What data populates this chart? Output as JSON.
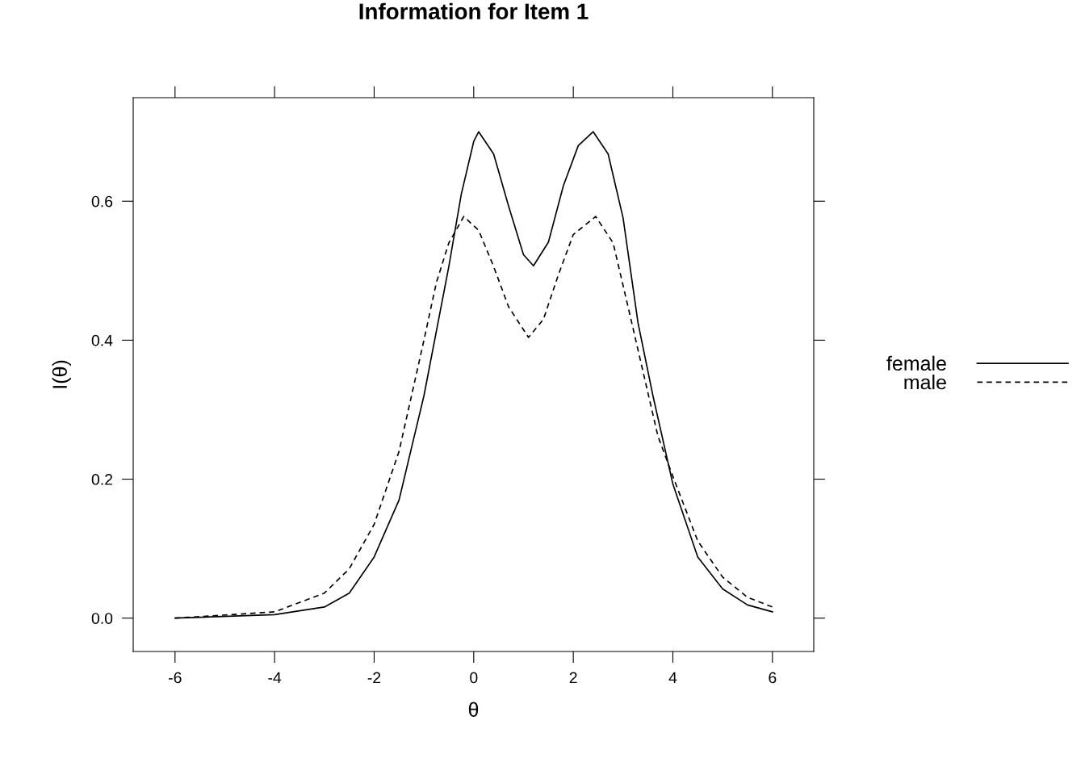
{
  "chart_data": {
    "type": "line",
    "title": "Information for Item 1",
    "xlabel": "θ",
    "ylabel": "I(θ)",
    "xlim": [
      -6.84,
      6.83
    ],
    "ylim": [
      -0.048,
      0.749
    ],
    "xticks": [
      -6,
      -4,
      -2,
      0,
      2,
      4,
      6
    ],
    "yticks": [
      {
        "value": 0,
        "label": "0.0"
      },
      {
        "value": 0.2,
        "label": "0.2"
      },
      {
        "value": 0.4,
        "label": "0.4"
      },
      {
        "value": 0.6,
        "label": "0.6"
      }
    ],
    "grid": false,
    "legend": "right",
    "marker": "none",
    "series": [
      {
        "name": "female",
        "color": "#000000",
        "line_style": "solid",
        "x": [
          -6,
          -4,
          -3,
          -2.5,
          -2,
          -1.5,
          -1,
          -0.5,
          -0.25,
          0,
          0.1,
          0.4,
          0.7,
          1.0,
          1.2,
          1.5,
          1.8,
          2.1,
          2.4,
          2.7,
          3.0,
          3.3,
          3.6,
          4,
          4.5,
          5,
          5.5,
          6
        ],
        "values": [
          0.0,
          0.005,
          0.016,
          0.036,
          0.088,
          0.17,
          0.32,
          0.506,
          0.61,
          0.686,
          0.7,
          0.668,
          0.593,
          0.523,
          0.507,
          0.541,
          0.622,
          0.68,
          0.7,
          0.668,
          0.576,
          0.425,
          0.32,
          0.193,
          0.088,
          0.042,
          0.019,
          0.009
        ]
      },
      {
        "name": "male",
        "color": "#000000",
        "line_style": "dashed",
        "x": [
          -6,
          -4,
          -3,
          -2.5,
          -2,
          -1.5,
          -1,
          -0.75,
          -0.5,
          -0.2,
          0.1,
          0.4,
          0.7,
          1.1,
          1.4,
          1.7,
          2.0,
          2.45,
          2.8,
          3.1,
          3.4,
          3.7,
          4,
          4.5,
          5,
          5.5,
          6
        ],
        "values": [
          0.0,
          0.009,
          0.036,
          0.071,
          0.135,
          0.24,
          0.4,
          0.483,
          0.54,
          0.578,
          0.558,
          0.506,
          0.448,
          0.404,
          0.43,
          0.494,
          0.552,
          0.578,
          0.54,
          0.448,
          0.355,
          0.262,
          0.204,
          0.111,
          0.059,
          0.03,
          0.016
        ]
      }
    ]
  }
}
